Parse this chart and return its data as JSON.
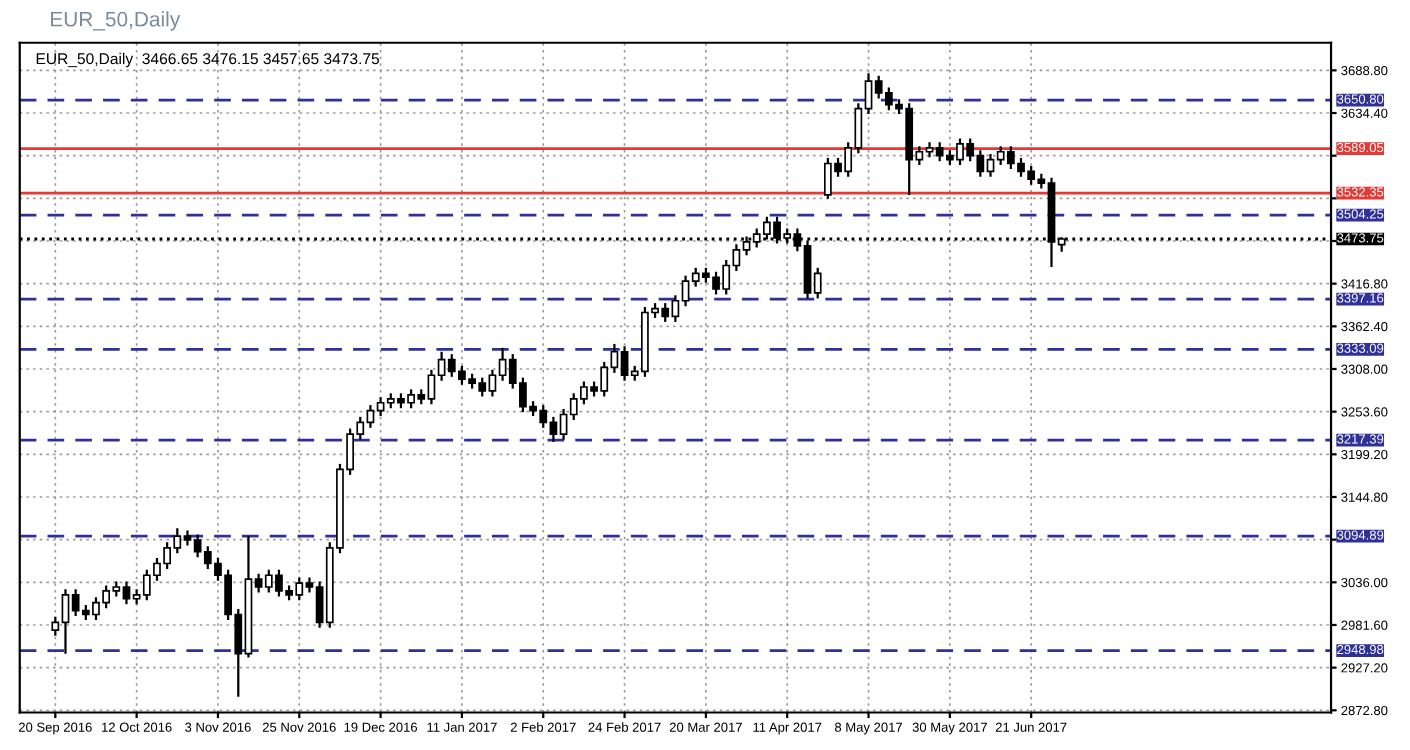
{
  "chart_data": {
    "type": "candlestick",
    "title": "EUR_50,Daily",
    "annotations": [
      "EUR_50,Daily  3466.65 3476.15 3457.65 3473.75"
    ],
    "color": "#000000",
    "categories": [
      "20 Sep 2016",
      null,
      null,
      null,
      null,
      null,
      null,
      null,
      "12 Oct 2016",
      null,
      null,
      null,
      null,
      null,
      null,
      null,
      "3 Nov 2016",
      null,
      null,
      null,
      null,
      null,
      null,
      null,
      "25 Nov 2016",
      null,
      null,
      null,
      null,
      null,
      null,
      null,
      "19 Dec 2016",
      null,
      null,
      null,
      null,
      null,
      null,
      null,
      "11 Jan 2017",
      null,
      null,
      null,
      null,
      null,
      null,
      null,
      "2 Feb 2017",
      null,
      null,
      null,
      null,
      null,
      null,
      null,
      "24 Feb 2017",
      null,
      null,
      null,
      null,
      null,
      null,
      null,
      "20 Mar 2017",
      null,
      null,
      null,
      null,
      null,
      null,
      null,
      "11 Apr 2017",
      null,
      null,
      null,
      null,
      null,
      null,
      null,
      "8 May 2017",
      null,
      null,
      null,
      null,
      null,
      null,
      null,
      "30 May 2017",
      null,
      null,
      null,
      null,
      null,
      null,
      null,
      "21 Jun 2017",
      null,
      null,
      null,
      null,
      null,
      null,
      null,
      null,
      null,
      null,
      null,
      null,
      null,
      null,
      null,
      null,
      null,
      null,
      null,
      null,
      null,
      null,
      null,
      null,
      null,
      null,
      null,
      null,
      null
    ],
    "ohlc": [
      [
        2975,
        2992,
        2968,
        2985
      ],
      [
        2985,
        3027,
        2945,
        3020
      ],
      [
        3020,
        3027,
        2993,
        3000
      ],
      [
        3000,
        3007,
        2988,
        2995
      ],
      [
        2995,
        3017,
        2988,
        3010
      ],
      [
        3010,
        3032,
        3003,
        3025
      ],
      [
        3025,
        3037,
        3018,
        3030
      ],
      [
        3030,
        3037,
        3008,
        3015
      ],
      [
        3015,
        3027,
        3008,
        3020
      ],
      [
        3020,
        3052,
        3013,
        3045
      ],
      [
        3045,
        3067,
        3038,
        3060
      ],
      [
        3060,
        3087,
        3053,
        3080
      ],
      [
        3080,
        3105,
        3073,
        3095
      ],
      [
        3095,
        3102,
        3083,
        3090
      ],
      [
        3090,
        3097,
        3068,
        3075
      ],
      [
        3075,
        3082,
        3053,
        3060
      ],
      [
        3060,
        3067,
        3038,
        3045
      ],
      [
        3045,
        3052,
        2988,
        2995
      ],
      [
        2995,
        3002,
        2890,
        2945
      ],
      [
        2945,
        3095,
        2940,
        3040
      ],
      [
        3040,
        3047,
        3023,
        3030
      ],
      [
        3030,
        3052,
        3023,
        3045
      ],
      [
        3045,
        3052,
        3018,
        3025
      ],
      [
        3025,
        3032,
        3013,
        3020
      ],
      [
        3020,
        3042,
        3013,
        3035
      ],
      [
        3035,
        3042,
        3023,
        3030
      ],
      [
        3030,
        3037,
        2978,
        2985
      ],
      [
        2985,
        3087,
        2978,
        3080
      ],
      [
        3080,
        3187,
        3073,
        3180
      ],
      [
        3180,
        3232,
        3173,
        3225
      ],
      [
        3225,
        3247,
        3218,
        3240
      ],
      [
        3240,
        3262,
        3233,
        3255
      ],
      [
        3255,
        3272,
        3248,
        3265
      ],
      [
        3265,
        3277,
        3258,
        3270
      ],
      [
        3270,
        3277,
        3258,
        3265
      ],
      [
        3265,
        3282,
        3258,
        3275
      ],
      [
        3275,
        3282,
        3263,
        3270
      ],
      [
        3270,
        3307,
        3263,
        3300
      ],
      [
        3300,
        3330,
        3293,
        3320
      ],
      [
        3320,
        3327,
        3298,
        3305
      ],
      [
        3305,
        3312,
        3288,
        3295
      ],
      [
        3295,
        3302,
        3283,
        3290
      ],
      [
        3290,
        3297,
        3273,
        3280
      ],
      [
        3280,
        3307,
        3273,
        3300
      ],
      [
        3300,
        3335,
        3293,
        3320
      ],
      [
        3320,
        3327,
        3283,
        3290
      ],
      [
        3290,
        3297,
        3253,
        3260
      ],
      [
        3260,
        3267,
        3248,
        3255
      ],
      [
        3255,
        3262,
        3233,
        3240
      ],
      [
        3240,
        3247,
        3215,
        3225
      ],
      [
        3225,
        3257,
        3218,
        3250
      ],
      [
        3250,
        3277,
        3243,
        3270
      ],
      [
        3270,
        3292,
        3263,
        3285
      ],
      [
        3285,
        3292,
        3273,
        3280
      ],
      [
        3280,
        3317,
        3273,
        3310
      ],
      [
        3310,
        3340,
        3303,
        3330
      ],
      [
        3330,
        3337,
        3293,
        3300
      ],
      [
        3300,
        3312,
        3293,
        3305
      ],
      [
        3305,
        3387,
        3298,
        3380
      ],
      [
        3380,
        3392,
        3373,
        3385
      ],
      [
        3385,
        3392,
        3368,
        3375
      ],
      [
        3375,
        3402,
        3368,
        3395
      ],
      [
        3395,
        3427,
        3388,
        3420
      ],
      [
        3420,
        3437,
        3413,
        3430
      ],
      [
        3430,
        3437,
        3418,
        3425
      ],
      [
        3425,
        3432,
        3403,
        3410
      ],
      [
        3410,
        3447,
        3403,
        3440
      ],
      [
        3440,
        3467,
        3433,
        3460
      ],
      [
        3460,
        3477,
        3453,
        3470
      ],
      [
        3470,
        3487,
        3463,
        3480
      ],
      [
        3480,
        3502,
        3473,
        3495
      ],
      [
        3495,
        3502,
        3468,
        3475
      ],
      [
        3475,
        3487,
        3468,
        3480
      ],
      [
        3480,
        3487,
        3458,
        3465
      ],
      [
        3465,
        3472,
        3398,
        3405
      ],
      [
        3405,
        3437,
        3398,
        3430
      ],
      [
        3530,
        3577,
        3525,
        3570
      ],
      [
        3570,
        3577,
        3553,
        3560
      ],
      [
        3560,
        3597,
        3553,
        3590
      ],
      [
        3590,
        3647,
        3583,
        3640
      ],
      [
        3640,
        3685,
        3633,
        3675
      ],
      [
        3675,
        3682,
        3653,
        3660
      ],
      [
        3660,
        3667,
        3638,
        3645
      ],
      [
        3645,
        3652,
        3633,
        3640
      ],
      [
        3640,
        3647,
        3530,
        3575
      ],
      [
        3575,
        3592,
        3568,
        3585
      ],
      [
        3585,
        3597,
        3578,
        3590
      ],
      [
        3590,
        3597,
        3573,
        3580
      ],
      [
        3580,
        3587,
        3568,
        3575
      ],
      [
        3575,
        3602,
        3568,
        3595
      ],
      [
        3595,
        3602,
        3573,
        3580
      ],
      [
        3580,
        3587,
        3553,
        3560
      ],
      [
        3560,
        3582,
        3553,
        3575
      ],
      [
        3575,
        3592,
        3568,
        3585
      ],
      [
        3585,
        3592,
        3563,
        3570
      ],
      [
        3570,
        3577,
        3553,
        3560
      ],
      [
        3560,
        3567,
        3543,
        3550
      ],
      [
        3550,
        3557,
        3538,
        3545
      ],
      [
        3545,
        3552,
        3438,
        3470
      ],
      [
        3466.65,
        3476.15,
        3457.65,
        3473.75
      ],
      null,
      null,
      null,
      null,
      null,
      null,
      null,
      null,
      null,
      null,
      null,
      null,
      null,
      null,
      null,
      null,
      null,
      null,
      null,
      null,
      null,
      null,
      null,
      null,
      null,
      null
    ],
    "ylim": [
      2870,
      3724
    ],
    "yticks": [
      {
        "value": 2872.8,
        "label": "2872.80"
      },
      {
        "value": 2927.2,
        "label": "2927.20"
      },
      {
        "value": 2981.6,
        "label": "2981.60"
      },
      {
        "value": 3036.0,
        "label": "3036.00"
      },
      {
        "value": 3090.4,
        "label": null
      },
      {
        "value": 3144.8,
        "label": "3144.80"
      },
      {
        "value": 3199.2,
        "label": "3199.20"
      },
      {
        "value": 3253.6,
        "label": "3253.60"
      },
      {
        "value": 3308.0,
        "label": "3308.00"
      },
      {
        "value": 3362.4,
        "label": "3362.40"
      },
      {
        "value": 3416.8,
        "label": "3416.80"
      },
      {
        "value": 3471.2,
        "label": null
      },
      {
        "value": 3525.6,
        "label": null
      },
      {
        "value": 3580.0,
        "label": null
      },
      {
        "value": 3634.4,
        "label": "3634.40"
      },
      {
        "value": 3688.8,
        "label": "3688.80"
      }
    ],
    "grid": true,
    "ref_lines": [
      {
        "axis": "y",
        "value": 3650.8,
        "label": "3650.80",
        "color": "#30309a",
        "line_style": "dashed"
      },
      {
        "axis": "y",
        "value": 3589.05,
        "label": "3589.05",
        "color": "#e53935",
        "line_style": "solid"
      },
      {
        "axis": "y",
        "value": 3532.35,
        "label": "3532.35",
        "color": "#e53935",
        "line_style": "solid"
      },
      {
        "axis": "y",
        "value": 3504.25,
        "label": "3504.25",
        "color": "#30309a",
        "line_style": "dashed"
      },
      {
        "axis": "y",
        "value": 3473.75,
        "label": "3473.75",
        "color": "#000000",
        "line_style": "dotted"
      },
      {
        "axis": "y",
        "value": 3397.16,
        "label": "3397.16",
        "color": "#30309a",
        "line_style": "dashed"
      },
      {
        "axis": "y",
        "value": 3333.09,
        "label": "3333.09",
        "color": "#30309a",
        "line_style": "dashed"
      },
      {
        "axis": "y",
        "value": 3217.39,
        "label": "3217.39",
        "color": "#30309a",
        "line_style": "dashed"
      },
      {
        "axis": "y",
        "value": 3094.89,
        "label": "3094.89",
        "color": "#30309a",
        "line_style": "dashed"
      },
      {
        "axis": "y",
        "value": 2948.98,
        "label": "2948.98",
        "color": "#30309a",
        "line_style": "dashed"
      }
    ]
  }
}
